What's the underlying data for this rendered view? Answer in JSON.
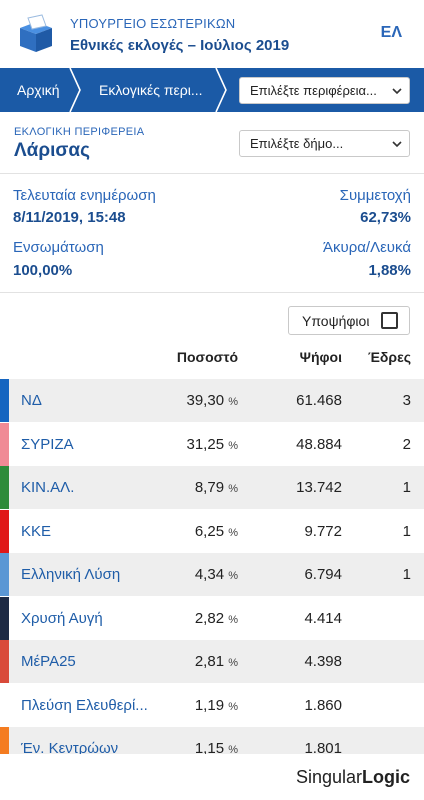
{
  "header": {
    "ministry": "ΥΠΟΥΡΓΕΙΟ ΕΣΩΤΕΡΙΚΩΝ",
    "election": "Εθνικές εκλογές – Ιούλιος 2019",
    "language": "ΕΛ",
    "logo_icon": "ballot-box-icon"
  },
  "nav": {
    "home": "Αρχική",
    "regions": "Εκλογικές περι...",
    "region_select": "Επιλέξτε περιφέρεια..."
  },
  "region": {
    "label": "ΕΚΛΟΓΙΚΗ ΠΕΡΙΦΕΡΕΙΑ",
    "name": "Λάρισας",
    "municipality_select": "Επιλέξτε δήμο..."
  },
  "stats": {
    "last_update_label": "Τελευταία ενημέρωση",
    "last_update_value": "8/11/2019, 15:48",
    "turnout_label": "Συμμετοχή",
    "turnout_value": "62,73%",
    "integration_label": "Ενσωμάτωση",
    "integration_value": "100,00%",
    "invalid_label": "Άκυρα/Λευκά",
    "invalid_value": "1,88%"
  },
  "candidates_toggle": {
    "label": "Υποψήφιοι",
    "checked": false
  },
  "table": {
    "headers": {
      "percent": "Ποσοστό",
      "votes": "Ψήφοι",
      "seats": "Έδρες"
    },
    "percent_unit": "%",
    "rows": [
      {
        "party": "ΝΔ",
        "percent": "39,30",
        "votes": "61.468",
        "seats": "3",
        "color": "#1565c0"
      },
      {
        "party": "ΣΥΡΙΖΑ",
        "percent": "31,25",
        "votes": "48.884",
        "seats": "2",
        "color": "#f08a95"
      },
      {
        "party": "ΚΙΝ.ΑΛ.",
        "percent": "8,79",
        "votes": "13.742",
        "seats": "1",
        "color": "#2e8b3a"
      },
      {
        "party": "ΚΚΕ",
        "percent": "6,25",
        "votes": "9.772",
        "seats": "1",
        "color": "#e01818"
      },
      {
        "party": "Ελληνική Λύση",
        "percent": "4,34",
        "votes": "6.794",
        "seats": "1",
        "color": "#5b97d4"
      },
      {
        "party": "Χρυσή Αυγή",
        "percent": "2,82",
        "votes": "4.414",
        "seats": "",
        "color": "#1d2a44"
      },
      {
        "party": "ΜέΡΑ25",
        "percent": "2,81",
        "votes": "4.398",
        "seats": "",
        "color": "#d94a3a"
      },
      {
        "party": "Πλεύση Ελευθερί...",
        "percent": "1,19",
        "votes": "1.860",
        "seats": "",
        "color": "#ffffff"
      },
      {
        "party": "Έν. Κεντρώων",
        "percent": "1,15",
        "votes": "1.801",
        "seats": "",
        "color": "#f47c20"
      }
    ]
  },
  "footer": {
    "brand_a": "Singular",
    "brand_b": "Logic"
  }
}
